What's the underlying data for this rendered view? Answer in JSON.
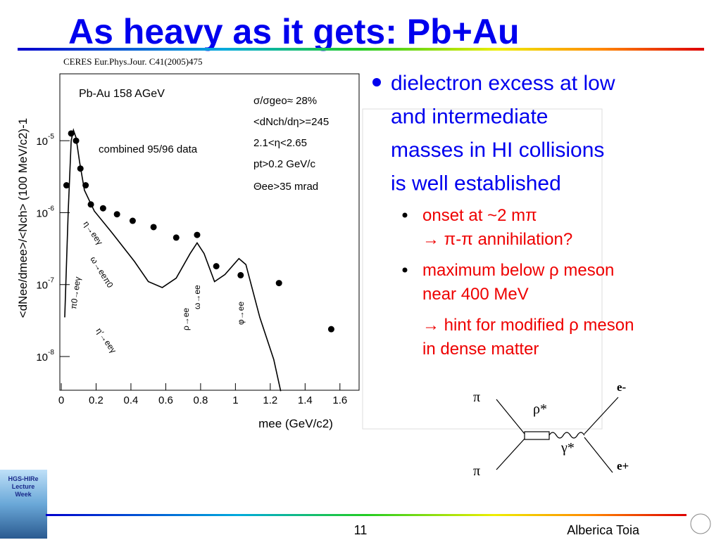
{
  "slide": {
    "title": "As heavy as it gets: Pb+Au",
    "citation": "CERES Eur.Phys.Jour. C41(2005)475",
    "bullet": {
      "lines": [
        "dielectron excess at low",
        "and intermediate",
        "masses in HI collisions",
        "is well established"
      ]
    },
    "subpoints": [
      {
        "lines": [
          "onset at ~2 mπ",
          "→ π-π annihilation?"
        ],
        "bullet": true
      },
      {
        "lines": [
          "maximum below ρ meson",
          "near 400 MeV"
        ],
        "bullet": true
      },
      {
        "lines": [
          "→ hint for modified ρ meson",
          "in dense matter"
        ],
        "bullet": false
      }
    ],
    "diagram": {
      "pi_in1": "π",
      "pi_in2": "π",
      "rho": "ρ*",
      "gamma": "γ*",
      "e_minus": "e-",
      "e_plus": "e+"
    },
    "logo": [
      "HGS-HIRe",
      "Lecture",
      "Week"
    ],
    "page_number": "11",
    "author": "Alberica Toia"
  },
  "chart_data": {
    "type": "scatter",
    "log_y": true,
    "x_label": "mee (GeV/c2)",
    "y_label": "<dNee/dmee>/<Nch> (100 MeV/c2)-1",
    "xlim": [
      0,
      1.71
    ],
    "ylim": [
      3.4e-09,
      8.5e-05
    ],
    "xticks": [
      0,
      0.2,
      0.4,
      0.6,
      0.8,
      1,
      1.2,
      1.4,
      1.6
    ],
    "yticks": [
      {
        "value": 1e-05,
        "label": "10",
        "exponent": "-5"
      },
      {
        "value": 1e-06,
        "label": "10",
        "exponent": "-6"
      },
      {
        "value": 1e-07,
        "label": "10",
        "exponent": "-7"
      },
      {
        "value": 1e-08,
        "label": "10",
        "exponent": "-8"
      }
    ],
    "series": [
      {
        "kind": "line",
        "color": "#000000",
        "x": [
          0.02,
          0.04,
          0.057,
          0.07,
          0.085,
          0.105,
          0.133,
          0.19,
          0.29,
          0.42,
          0.5,
          0.58,
          0.66,
          0.74,
          0.78,
          0.82,
          0.88,
          0.94,
          1.02,
          1.06,
          1.14,
          1.22,
          1.26
        ],
        "values": [
          3.5e-08,
          1.05e-06,
          1e-05,
          1.4e-05,
          1.1e-05,
          5.1e-06,
          2.05e-06,
          1.05e-06,
          5.3e-07,
          2.1e-07,
          1.1e-07,
          9.1e-08,
          1.23e-07,
          2.7e-07,
          3.8e-07,
          2.7e-07,
          1.1e-07,
          1.38e-07,
          2.3e-07,
          1.9e-07,
          3.5e-08,
          9.1e-09,
          3.3e-09
        ]
      },
      {
        "kind": "points",
        "color": "#000000",
        "x": [
          0.03,
          0.057,
          0.085,
          0.11,
          0.14,
          0.17,
          0.24,
          0.32,
          0.41,
          0.53,
          0.66,
          0.78,
          0.89,
          1.03,
          1.25,
          1.55
        ],
        "values": [
          2.4e-06,
          1.26e-05,
          1e-05,
          4.1e-06,
          2.4e-06,
          1.3e-06,
          1.15e-06,
          9.5e-07,
          7.7e-07,
          6.3e-07,
          4.5e-07,
          4.9e-07,
          1.8e-07,
          1.35e-07,
          1.05e-07,
          2.4e-08
        ]
      }
    ],
    "annotations": [
      "Pb-Au 158 AGeV",
      "combined 95/96 data",
      "σ/σgeo≈ 28%",
      "<dNch/dη>=245",
      "2.1<η<2.65",
      "pt>0.2 GeV/c",
      "Θee>35 mrad",
      "π0→eeγ",
      "η→eeγ",
      "ω→eeπ0",
      "η′→eeγ",
      "ρ→ee",
      "ω→ee",
      "φ→ee"
    ]
  }
}
